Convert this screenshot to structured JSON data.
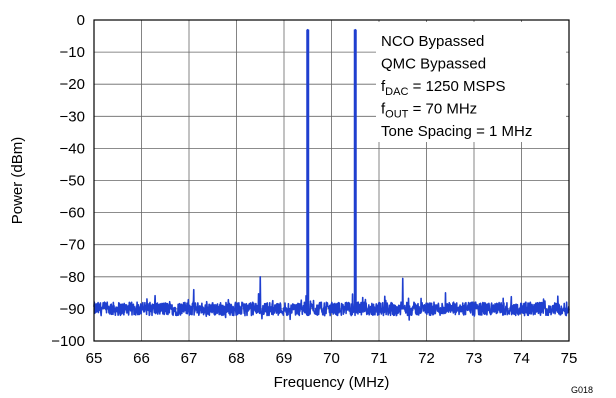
{
  "chart_data": {
    "type": "line",
    "title": "",
    "xlabel": "Frequency (MHz)",
    "ylabel": "Power (dBm)",
    "xlim": [
      65,
      75
    ],
    "ylim": [
      -100,
      0
    ],
    "x_ticks": [
      65,
      66,
      67,
      68,
      69,
      70,
      71,
      72,
      73,
      74,
      75
    ],
    "y_ticks": [
      0,
      -10,
      -20,
      -30,
      -40,
      -50,
      -60,
      -70,
      -80,
      -90,
      -100
    ],
    "y_tick_labels": [
      "0",
      "−10",
      "−20",
      "−30",
      "−40",
      "−50",
      "−60",
      "−70",
      "−80",
      "−90",
      "−100"
    ],
    "grid": true,
    "series_color": "#1f3fcf",
    "noise_floor": -90,
    "series": [
      {
        "x": [
          65.0,
          67.1,
          68.0,
          68.5,
          69.0,
          69.5,
          70.0,
          70.5,
          71.0,
          71.5,
          72.0,
          72.4,
          73.0,
          74.0,
          75.0
        ],
        "y": [
          -90,
          -84,
          -90,
          -80,
          -90,
          -3,
          -90,
          -3,
          -90,
          -80.5,
          -90,
          -85,
          -90,
          -90,
          -90
        ]
      }
    ],
    "annotations": [
      {
        "id": "nco",
        "parts": [
          {
            "text": "NCO Bypassed"
          }
        ]
      },
      {
        "id": "qmc",
        "parts": [
          {
            "text": "QMC Bypassed"
          }
        ]
      },
      {
        "id": "fdac",
        "parts": [
          {
            "text": "f"
          },
          {
            "text": "DAC",
            "sub": true
          },
          {
            "text": " = 1250 MSPS"
          }
        ]
      },
      {
        "id": "fout",
        "parts": [
          {
            "text": "f"
          },
          {
            "text": "OUT",
            "sub": true
          },
          {
            "text": " = 70 MHz"
          }
        ]
      },
      {
        "id": "tone",
        "parts": [
          {
            "text": "Tone Spacing = 1 MHz"
          }
        ]
      }
    ],
    "figure_id": "G018"
  }
}
